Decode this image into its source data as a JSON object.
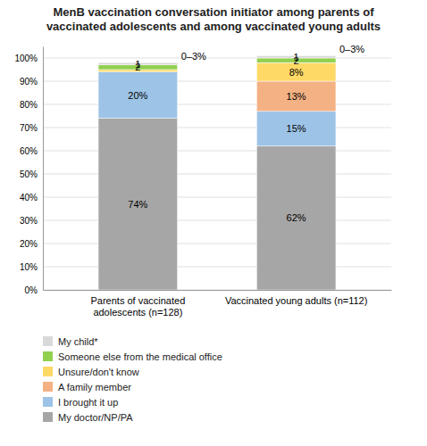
{
  "chart_data": {
    "type": "bar",
    "stacked": true,
    "title": "MenB vaccination conversation initiator among parents of\nvaccinated adolescents and among vaccinated young adults",
    "categories": [
      "Parents of vaccinated adolescents (n=128)",
      "Vaccinated young adults (n=112)"
    ],
    "series": [
      {
        "name": "My doctor/NP/PA",
        "color": "#a6a6a6",
        "values": [
          74,
          62
        ],
        "value_labels": [
          "74%",
          "62%"
        ]
      },
      {
        "name": "I brought it up",
        "color": "#9dc3e6",
        "values": [
          20,
          15
        ],
        "value_labels": [
          "20%",
          "15%"
        ]
      },
      {
        "name": "A family member",
        "color": "#f4b183",
        "values": [
          0,
          13
        ],
        "value_labels": [
          null,
          "13%"
        ]
      },
      {
        "name": "Unsure/don't know",
        "color": "#ffd966",
        "values": [
          1,
          8
        ],
        "value_labels": [
          null,
          "8%"
        ]
      },
      {
        "name": "Someone else from the medical office",
        "color": "#92d050",
        "values": [
          2,
          2
        ]
      },
      {
        "name": "My child*",
        "color": "#d9d9d9",
        "values": [
          1,
          1
        ]
      }
    ],
    "annotations": [
      "0–3%",
      "0–3%"
    ],
    "ylim": [
      0,
      105
    ],
    "yticks": [
      {
        "value": 0,
        "label": "0%"
      },
      {
        "value": 10,
        "label": "10%"
      },
      {
        "value": 20,
        "label": "20%"
      },
      {
        "value": 30,
        "label": "30%"
      },
      {
        "value": 40,
        "label": "40%"
      },
      {
        "value": 50,
        "label": "50%"
      },
      {
        "value": 60,
        "label": "60%"
      },
      {
        "value": 70,
        "label": "70%"
      },
      {
        "value": 80,
        "label": "80%"
      },
      {
        "value": 90,
        "label": "90%"
      },
      {
        "value": 100,
        "label": "100%"
      }
    ],
    "grid": true,
    "legend": "bottom",
    "data_labels": true
  }
}
